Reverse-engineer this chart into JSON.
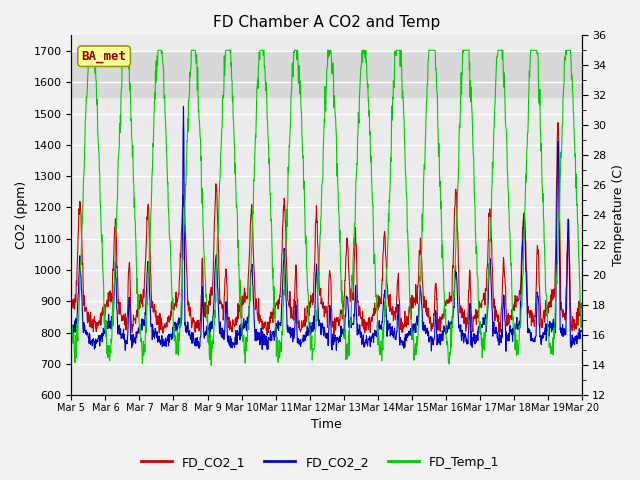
{
  "title": "FD Chamber A CO2 and Temp",
  "xlabel": "Time",
  "ylabel_left": "CO2 (ppm)",
  "ylabel_right": "Temperature (C)",
  "legend_label": "BA_met",
  "series_labels": [
    "FD_CO2_1",
    "FD_CO2_2",
    "FD_Temp_1"
  ],
  "colors": [
    "#cc0000",
    "#0000cc",
    "#00cc00"
  ],
  "ylim_left": [
    600,
    1750
  ],
  "ylim_right": [
    12,
    36
  ],
  "yticks_left": [
    600,
    700,
    800,
    900,
    1000,
    1100,
    1200,
    1300,
    1400,
    1500,
    1600,
    1700
  ],
  "yticks_right": [
    12,
    14,
    16,
    18,
    20,
    22,
    24,
    26,
    28,
    30,
    32,
    34,
    36
  ],
  "xticklabels": [
    "Mar 5",
    "Mar 6",
    "Mar 7",
    "Mar 8",
    "Mar 9",
    "Mar 10",
    "Mar 11",
    "Mar 12",
    "Mar 13",
    "Mar 14",
    "Mar 15",
    "Mar 16",
    "Mar 17",
    "Mar 18",
    "Mar 19",
    "Mar 20"
  ],
  "shaded_region": [
    1550,
    1700
  ],
  "fig_bg": "#f2f2f2",
  "ax_bg": "#ebebeb",
  "grid_color": "#ffffff",
  "annotation_box_color": "#ffff99",
  "annotation_text_color": "#990000",
  "annotation_edge_color": "#999900",
  "linewidth": 0.8,
  "n_days": 15,
  "pts_per_day": 96
}
